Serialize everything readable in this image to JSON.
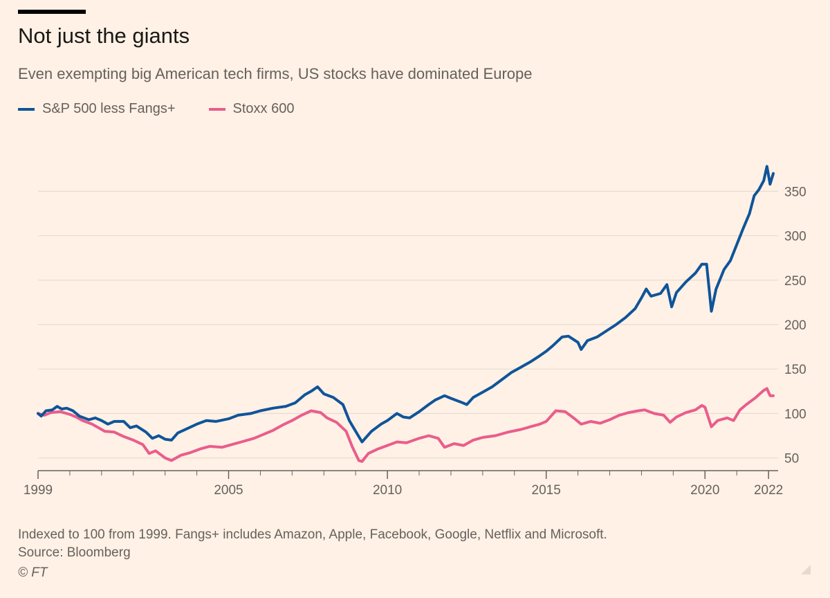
{
  "header": {
    "title": "Not just the giants",
    "subtitle": "Even exempting big American tech firms, US stocks have dominated Europe"
  },
  "footer": {
    "note": "Indexed to 100 from 1999. Fangs+ includes Amazon, Apple, Facebook, Google, Netflix and Microsoft.",
    "source": "Source: Bloomberg",
    "copyright": "© FT"
  },
  "chart_data": {
    "type": "line",
    "title": "Not just the giants",
    "subtitle": "Even exempting big American tech firms, US stocks have dominated Europe",
    "xlabel": "",
    "ylabel": "",
    "xlim": [
      1999,
      2022.15
    ],
    "ylim": [
      45,
      390
    ],
    "x_ticks": [
      1999,
      2005,
      2010,
      2015,
      2020,
      2022
    ],
    "y_ticks": [
      50,
      100,
      150,
      200,
      250,
      300,
      350
    ],
    "grid": "horizontal",
    "legend_position": "top-left",
    "series": [
      {
        "name": "S&P 500 less Fangs+",
        "color": "#0f5499",
        "points": [
          [
            1999.0,
            100
          ],
          [
            1999.1,
            97
          ],
          [
            1999.25,
            103
          ],
          [
            1999.45,
            104
          ],
          [
            1999.6,
            108
          ],
          [
            1999.75,
            105
          ],
          [
            1999.9,
            106
          ],
          [
            2000.1,
            103
          ],
          [
            2000.3,
            97
          ],
          [
            2000.6,
            93
          ],
          [
            2000.8,
            95
          ],
          [
            2001.0,
            92
          ],
          [
            2001.2,
            88
          ],
          [
            2001.4,
            91
          ],
          [
            2001.7,
            91
          ],
          [
            2001.9,
            84
          ],
          [
            2002.1,
            86
          ],
          [
            2002.4,
            79
          ],
          [
            2002.6,
            72
          ],
          [
            2002.8,
            75
          ],
          [
            2003.0,
            71
          ],
          [
            2003.2,
            70
          ],
          [
            2003.4,
            78
          ],
          [
            2003.7,
            83
          ],
          [
            2004.0,
            88
          ],
          [
            2004.3,
            92
          ],
          [
            2004.6,
            91
          ],
          [
            2005.0,
            94
          ],
          [
            2005.3,
            98
          ],
          [
            2005.7,
            100
          ],
          [
            2006.0,
            103
          ],
          [
            2006.4,
            106
          ],
          [
            2006.8,
            108
          ],
          [
            2007.1,
            112
          ],
          [
            2007.4,
            121
          ],
          [
            2007.6,
            125
          ],
          [
            2007.8,
            130
          ],
          [
            2008.0,
            122
          ],
          [
            2008.3,
            118
          ],
          [
            2008.6,
            110
          ],
          [
            2008.8,
            92
          ],
          [
            2009.0,
            80
          ],
          [
            2009.2,
            68
          ],
          [
            2009.5,
            80
          ],
          [
            2009.8,
            88
          ],
          [
            2010.0,
            92
          ],
          [
            2010.3,
            100
          ],
          [
            2010.5,
            96
          ],
          [
            2010.7,
            95
          ],
          [
            2011.0,
            102
          ],
          [
            2011.3,
            110
          ],
          [
            2011.5,
            115
          ],
          [
            2011.8,
            120
          ],
          [
            2012.0,
            117
          ],
          [
            2012.3,
            113
          ],
          [
            2012.5,
            110
          ],
          [
            2012.7,
            118
          ],
          [
            2013.0,
            124
          ],
          [
            2013.3,
            130
          ],
          [
            2013.6,
            138
          ],
          [
            2013.9,
            146
          ],
          [
            2014.2,
            152
          ],
          [
            2014.5,
            158
          ],
          [
            2014.8,
            165
          ],
          [
            2015.0,
            170
          ],
          [
            2015.2,
            176
          ],
          [
            2015.5,
            186
          ],
          [
            2015.7,
            187
          ],
          [
            2016.0,
            180
          ],
          [
            2016.1,
            172
          ],
          [
            2016.3,
            182
          ],
          [
            2016.6,
            186
          ],
          [
            2016.9,
            193
          ],
          [
            2017.2,
            200
          ],
          [
            2017.5,
            208
          ],
          [
            2017.8,
            218
          ],
          [
            2018.0,
            230
          ],
          [
            2018.15,
            240
          ],
          [
            2018.3,
            232
          ],
          [
            2018.6,
            235
          ],
          [
            2018.8,
            245
          ],
          [
            2018.95,
            220
          ],
          [
            2019.1,
            236
          ],
          [
            2019.4,
            248
          ],
          [
            2019.7,
            258
          ],
          [
            2019.9,
            268
          ],
          [
            2020.05,
            268
          ],
          [
            2020.2,
            215
          ],
          [
            2020.35,
            240
          ],
          [
            2020.6,
            262
          ],
          [
            2020.8,
            272
          ],
          [
            2021.0,
            290
          ],
          [
            2021.2,
            308
          ],
          [
            2021.4,
            325
          ],
          [
            2021.55,
            345
          ],
          [
            2021.7,
            352
          ],
          [
            2021.85,
            362
          ],
          [
            2021.95,
            378
          ],
          [
            2022.05,
            358
          ],
          [
            2022.15,
            370
          ]
        ]
      },
      {
        "name": "Stoxx 600",
        "color": "#e95d8c",
        "points": [
          [
            1999.0,
            100
          ],
          [
            1999.2,
            98
          ],
          [
            1999.4,
            101
          ],
          [
            1999.7,
            102
          ],
          [
            2000.0,
            99
          ],
          [
            2000.2,
            96
          ],
          [
            2000.4,
            92
          ],
          [
            2000.7,
            88
          ],
          [
            2000.9,
            84
          ],
          [
            2001.1,
            80
          ],
          [
            2001.4,
            79
          ],
          [
            2001.7,
            74
          ],
          [
            2002.0,
            70
          ],
          [
            2002.3,
            65
          ],
          [
            2002.5,
            55
          ],
          [
            2002.7,
            58
          ],
          [
            2003.0,
            50
          ],
          [
            2003.2,
            47
          ],
          [
            2003.5,
            53
          ],
          [
            2003.8,
            56
          ],
          [
            2004.1,
            60
          ],
          [
            2004.4,
            63
          ],
          [
            2004.8,
            62
          ],
          [
            2005.0,
            64
          ],
          [
            2005.4,
            68
          ],
          [
            2005.8,
            72
          ],
          [
            2006.2,
            78
          ],
          [
            2006.4,
            81
          ],
          [
            2006.7,
            87
          ],
          [
            2007.0,
            92
          ],
          [
            2007.3,
            98
          ],
          [
            2007.6,
            103
          ],
          [
            2007.9,
            101
          ],
          [
            2008.1,
            95
          ],
          [
            2008.4,
            90
          ],
          [
            2008.7,
            80
          ],
          [
            2008.9,
            62
          ],
          [
            2009.1,
            47
          ],
          [
            2009.2,
            46
          ],
          [
            2009.4,
            55
          ],
          [
            2009.7,
            60
          ],
          [
            2010.0,
            64
          ],
          [
            2010.3,
            68
          ],
          [
            2010.6,
            67
          ],
          [
            2011.0,
            72
          ],
          [
            2011.3,
            75
          ],
          [
            2011.6,
            72
          ],
          [
            2011.8,
            62
          ],
          [
            2012.1,
            66
          ],
          [
            2012.4,
            64
          ],
          [
            2012.7,
            70
          ],
          [
            2013.0,
            73
          ],
          [
            2013.4,
            75
          ],
          [
            2013.8,
            79
          ],
          [
            2014.2,
            82
          ],
          [
            2014.5,
            85
          ],
          [
            2014.8,
            88
          ],
          [
            2015.0,
            91
          ],
          [
            2015.3,
            103
          ],
          [
            2015.6,
            102
          ],
          [
            2015.9,
            94
          ],
          [
            2016.1,
            88
          ],
          [
            2016.4,
            91
          ],
          [
            2016.7,
            89
          ],
          [
            2017.0,
            93
          ],
          [
            2017.3,
            98
          ],
          [
            2017.6,
            101
          ],
          [
            2017.9,
            103
          ],
          [
            2018.1,
            104
          ],
          [
            2018.4,
            100
          ],
          [
            2018.7,
            98
          ],
          [
            2018.9,
            90
          ],
          [
            2019.1,
            96
          ],
          [
            2019.4,
            101
          ],
          [
            2019.7,
            104
          ],
          [
            2019.9,
            109
          ],
          [
            2020.0,
            107
          ],
          [
            2020.2,
            85
          ],
          [
            2020.4,
            92
          ],
          [
            2020.7,
            95
          ],
          [
            2020.9,
            92
          ],
          [
            2021.1,
            104
          ],
          [
            2021.3,
            110
          ],
          [
            2021.6,
            118
          ],
          [
            2021.85,
            126
          ],
          [
            2021.95,
            128
          ],
          [
            2022.05,
            120
          ],
          [
            2022.15,
            120
          ]
        ]
      }
    ]
  }
}
